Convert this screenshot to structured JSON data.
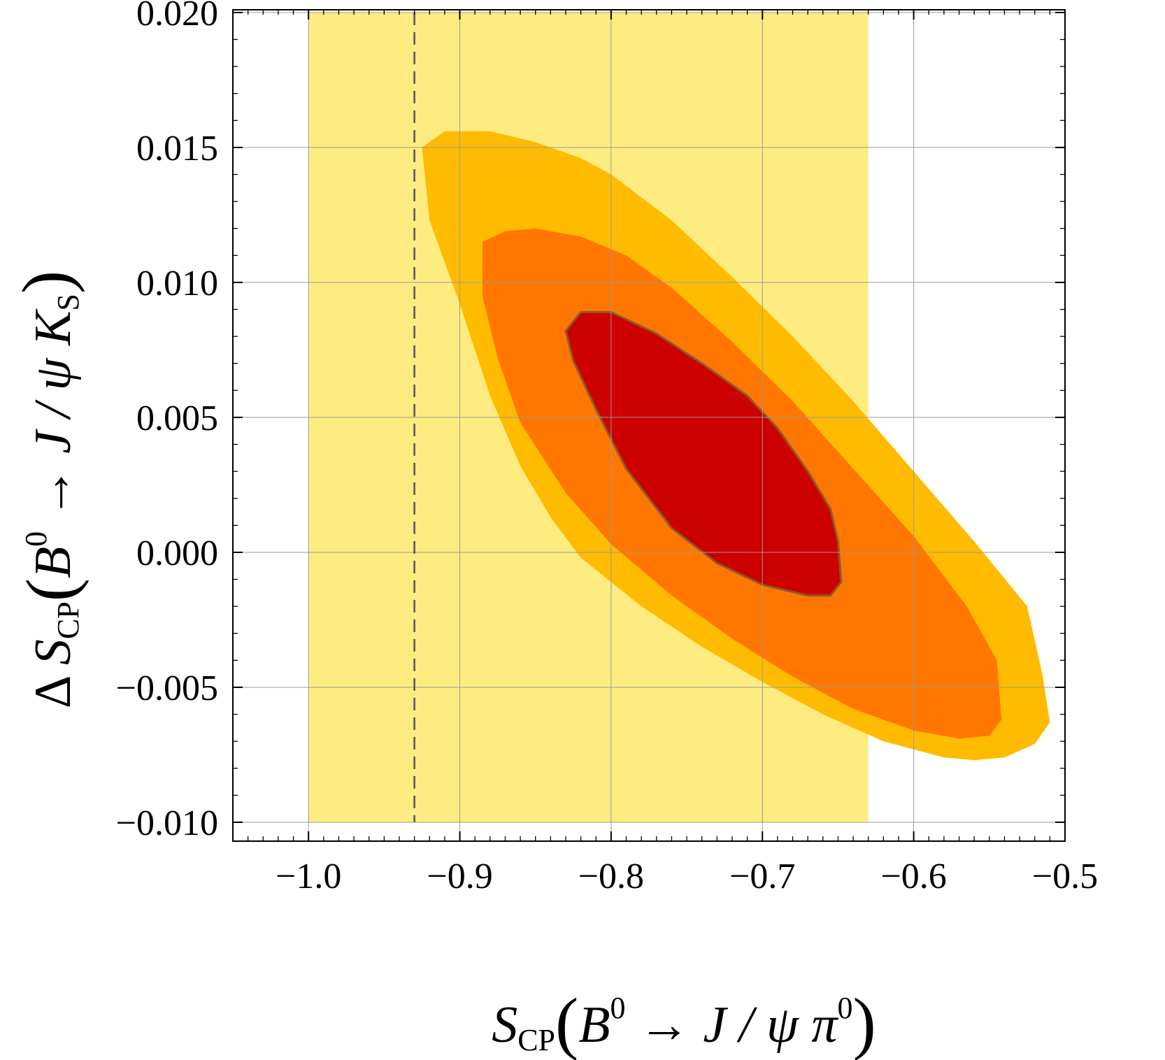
{
  "chart_data": {
    "type": "contour",
    "title": "",
    "xlabel": {
      "main": "S",
      "sub": "CP",
      "open": "(",
      "body": "B",
      "sup": "0",
      "rest": " → J / ψ π",
      "sup2": "0",
      "close": ")"
    },
    "ylabel": {
      "prefix": "Δ ",
      "main": "S",
      "sub": "CP",
      "open": "(",
      "body": "B",
      "sup": "0",
      "rest": " → J / ψ K",
      "sub2": "S",
      "close": ")"
    },
    "xlim": [
      -1.05,
      -0.5
    ],
    "ylim": [
      -0.0107,
      0.0201
    ],
    "xticks": [
      -1.0,
      -0.9,
      -0.8,
      -0.7,
      -0.6,
      -0.5
    ],
    "xtick_labels": [
      "−1.0",
      "−0.9",
      "−0.8",
      "−0.7",
      "−0.6",
      "−0.5"
    ],
    "yticks": [
      -0.01,
      -0.005,
      0.0,
      0.005,
      0.01,
      0.015,
      0.02
    ],
    "ytick_labels": [
      "−0.010",
      "−0.005",
      "0.000",
      "0.005",
      "0.010",
      "0.015",
      "0.020"
    ],
    "grid": true,
    "colors": {
      "band": "#FFEC80",
      "outer": "#FFBB00",
      "middle": "#FF7700",
      "inner": "#CC0000",
      "inner_edge": "#8A5A2A",
      "grid": "#9A9A9A",
      "frame": "#000000",
      "dashed": "#555555"
    },
    "band": {
      "x": [
        -1.0,
        -0.63
      ],
      "y": [
        -0.01,
        0.02
      ]
    },
    "dashed_line_x": -0.93,
    "regions": [
      {
        "name": "outer",
        "points": [
          [
            -0.925,
            0.015
          ],
          [
            -0.91,
            0.0156
          ],
          [
            -0.88,
            0.0156
          ],
          [
            -0.85,
            0.0152
          ],
          [
            -0.82,
            0.0146
          ],
          [
            -0.8,
            0.014
          ],
          [
            -0.76,
            0.0123
          ],
          [
            -0.72,
            0.0102
          ],
          [
            -0.68,
            0.008
          ],
          [
            -0.64,
            0.0056
          ],
          [
            -0.6,
            0.003
          ],
          [
            -0.56,
            0.0004
          ],
          [
            -0.525,
            -0.002
          ],
          [
            -0.515,
            -0.0045
          ],
          [
            -0.51,
            -0.0063
          ],
          [
            -0.52,
            -0.0071
          ],
          [
            -0.54,
            -0.0076
          ],
          [
            -0.56,
            -0.0077
          ],
          [
            -0.58,
            -0.0076
          ],
          [
            -0.62,
            -0.007
          ],
          [
            -0.66,
            -0.006
          ],
          [
            -0.7,
            -0.0048
          ],
          [
            -0.74,
            -0.0035
          ],
          [
            -0.78,
            -0.002
          ],
          [
            -0.82,
            -0.0002
          ],
          [
            -0.84,
            0.0013
          ],
          [
            -0.86,
            0.0032
          ],
          [
            -0.88,
            0.0058
          ],
          [
            -0.9,
            0.0092
          ],
          [
            -0.92,
            0.0123
          ]
        ]
      },
      {
        "name": "middle",
        "points": [
          [
            -0.885,
            0.0115
          ],
          [
            -0.87,
            0.0119
          ],
          [
            -0.85,
            0.012
          ],
          [
            -0.82,
            0.0117
          ],
          [
            -0.79,
            0.011
          ],
          [
            -0.76,
            0.0098
          ],
          [
            -0.72,
            0.0078
          ],
          [
            -0.68,
            0.0056
          ],
          [
            -0.64,
            0.0031
          ],
          [
            -0.6,
            0.0006
          ],
          [
            -0.565,
            -0.002
          ],
          [
            -0.545,
            -0.004
          ],
          [
            -0.542,
            -0.0062
          ],
          [
            -0.55,
            -0.0068
          ],
          [
            -0.57,
            -0.0069
          ],
          [
            -0.6,
            -0.0066
          ],
          [
            -0.64,
            -0.0058
          ],
          [
            -0.68,
            -0.0046
          ],
          [
            -0.72,
            -0.0032
          ],
          [
            -0.76,
            -0.0016
          ],
          [
            -0.8,
            0.0003
          ],
          [
            -0.83,
            0.0022
          ],
          [
            -0.86,
            0.0048
          ],
          [
            -0.875,
            0.0072
          ],
          [
            -0.885,
            0.0095
          ]
        ]
      },
      {
        "name": "inner",
        "points": [
          [
            -0.83,
            0.0082
          ],
          [
            -0.82,
            0.0089
          ],
          [
            -0.8,
            0.0089
          ],
          [
            -0.77,
            0.0081
          ],
          [
            -0.74,
            0.007
          ],
          [
            -0.71,
            0.0058
          ],
          [
            -0.69,
            0.0046
          ],
          [
            -0.67,
            0.003
          ],
          [
            -0.655,
            0.0016
          ],
          [
            -0.65,
            0.0004
          ],
          [
            -0.648,
            -0.0011
          ],
          [
            -0.655,
            -0.0016
          ],
          [
            -0.67,
            -0.0016
          ],
          [
            -0.7,
            -0.0012
          ],
          [
            -0.73,
            -0.0004
          ],
          [
            -0.76,
            0.0009
          ],
          [
            -0.79,
            0.0031
          ],
          [
            -0.81,
            0.0053
          ],
          [
            -0.825,
            0.0071
          ]
        ]
      }
    ]
  }
}
